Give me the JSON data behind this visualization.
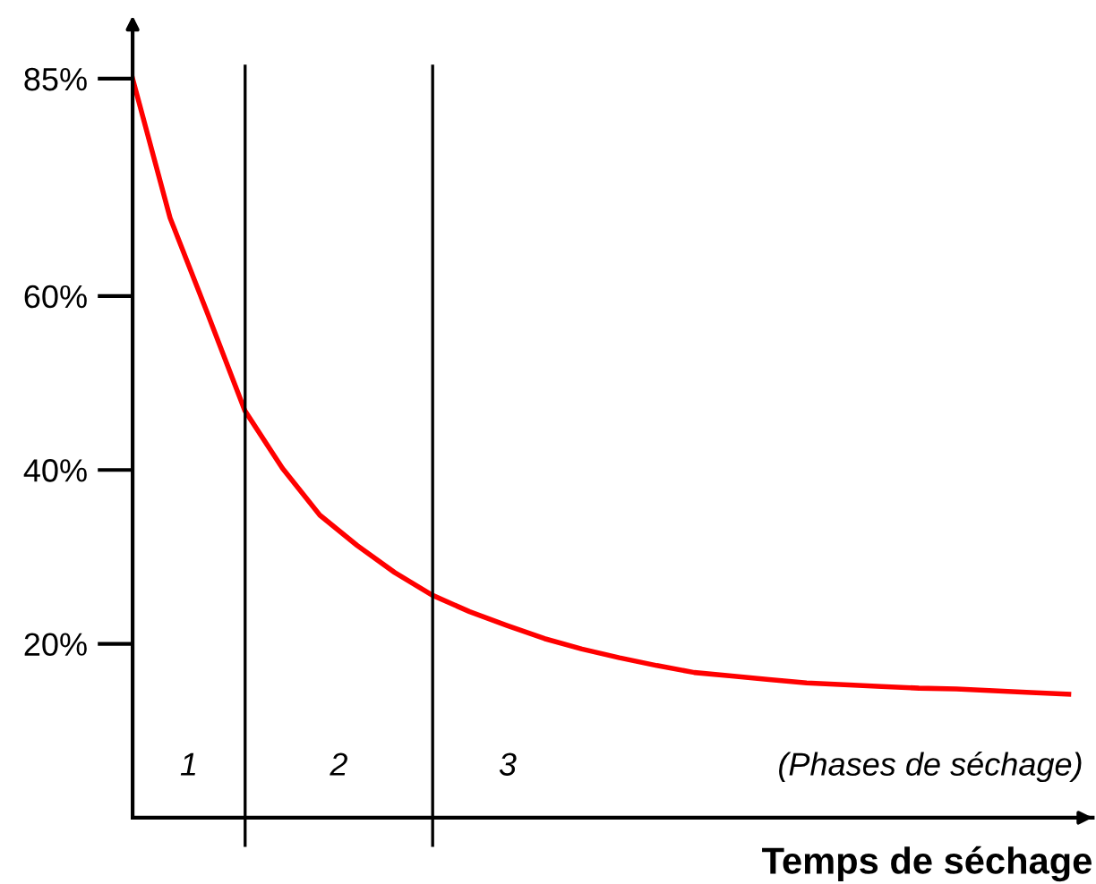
{
  "chart_data": {
    "type": "line",
    "xlabel": "Temps de séchage",
    "categories": [
      null,
      null,
      null,
      null,
      null,
      null,
      null,
      null,
      null,
      null,
      null,
      null,
      null,
      null,
      null,
      null,
      null,
      null,
      null,
      null,
      null,
      null,
      null,
      null,
      null,
      null
    ],
    "series": [
      {
        "color": "#ff0000",
        "values": [
          85,
          69,
          58,
          46.8,
          40.2,
          34.8,
          31.3,
          28.2,
          25.6,
          23.7,
          22.1,
          20.6,
          19.4,
          18.4,
          17.5,
          16.7,
          16.3,
          15.9,
          15.5,
          15.3,
          15.1,
          14.9,
          14.8,
          14.6,
          14.4,
          14.2
        ]
      }
    ],
    "ylim": [
      0,
      91
    ],
    "yticks": [
      {
        "value": 20,
        "label": "20%"
      },
      {
        "value": 40,
        "label": "40%"
      },
      {
        "value": 60,
        "label": "60%"
      },
      {
        "value": 85,
        "label": "85%"
      }
    ],
    "tick_labels": "y",
    "grid": false,
    "legend": false,
    "marker": "none",
    "line_style": "solid",
    "annotations": [
      "1",
      "2",
      "3",
      "(Phases de séchage)"
    ]
  }
}
